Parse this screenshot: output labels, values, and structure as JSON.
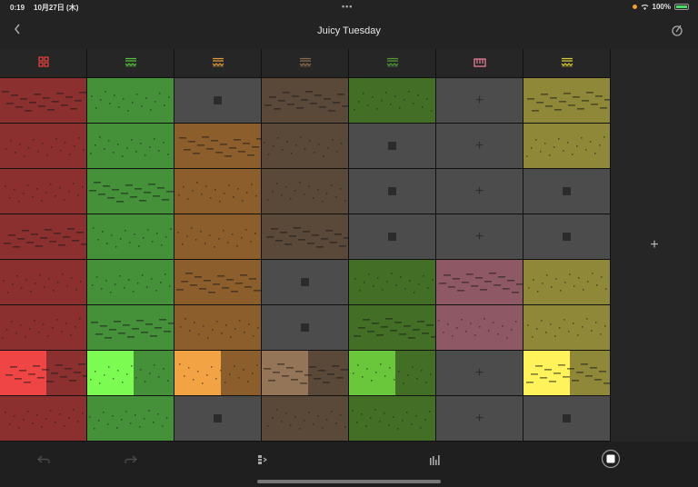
{
  "status_bar": {
    "time": "0:19",
    "date": "10月27日 (木)",
    "battery": "100%",
    "center_dots": "•••"
  },
  "nav": {
    "title": "Juicy Tuesday",
    "back_icon": "chevron-left-icon",
    "metronome_icon": "metronome-icon"
  },
  "colors": {
    "red": "#8b2f2f",
    "red_hl": "#f04545",
    "green": "#45913a",
    "green_hl": "#7cfc52",
    "orange": "#8c5e2c",
    "orange_hl": "#f2a445",
    "brown": "#5a4838",
    "brown_hl": "#957557",
    "dkgreen": "#426f25",
    "dkgreen_hl": "#6ac63b",
    "pink": "#8e5965",
    "olive": "#8e8838",
    "olive_hl": "#fff25a",
    "empty": "#4c4c4c"
  },
  "tracks": [
    {
      "name": "drums",
      "icon": "drum-pad-icon",
      "icon_color": "#e04040"
    },
    {
      "name": "synth-green",
      "icon": "synth-wave-icon",
      "icon_color": "#56c23c"
    },
    {
      "name": "synth-orange",
      "icon": "synth-wave-icon",
      "icon_color": "#e29b3a"
    },
    {
      "name": "synth-brown",
      "icon": "synth-wave-icon",
      "icon_color": "#8b6c4e"
    },
    {
      "name": "synth-dkgreen",
      "icon": "synth-wave-icon",
      "icon_color": "#4f9a33"
    },
    {
      "name": "keyboard",
      "icon": "keyboard-icon",
      "icon_color": "#e67f95"
    },
    {
      "name": "synth-yellow",
      "icon": "synth-wave-icon",
      "icon_color": "#d9cc3a"
    }
  ],
  "grid": {
    "rows": 8,
    "cells": [
      [
        "red",
        "green",
        "stop",
        "brown",
        "dkgreen",
        "plus",
        "olive"
      ],
      [
        "red",
        "green",
        "orange",
        "brown",
        "stop",
        "plus",
        "olive"
      ],
      [
        "red",
        "green",
        "orange",
        "brown",
        "stop",
        "plus",
        "stop"
      ],
      [
        "red",
        "green",
        "orange",
        "brown",
        "stop",
        "plus",
        "stop"
      ],
      [
        "red",
        "green",
        "orange",
        "stop",
        "dkgreen",
        "pink",
        "olive"
      ],
      [
        "red",
        "green",
        "orange",
        "stop",
        "dkgreen",
        "pink",
        "olive"
      ],
      [
        "red*",
        "green*",
        "orange*",
        "brown*",
        "dkgreen*",
        "plus",
        "olive*"
      ],
      [
        "red",
        "green",
        "stop",
        "brown",
        "dkgreen",
        "plus",
        "stop"
      ]
    ],
    "add_track_label": "+"
  },
  "toolbar": {
    "undo_icon": "undo-icon",
    "redo_icon": "redo-icon",
    "mixer_split_icon": "track-settings-icon",
    "mixer_icon": "mixer-bars-icon",
    "stop_icon": "stop-icon"
  }
}
